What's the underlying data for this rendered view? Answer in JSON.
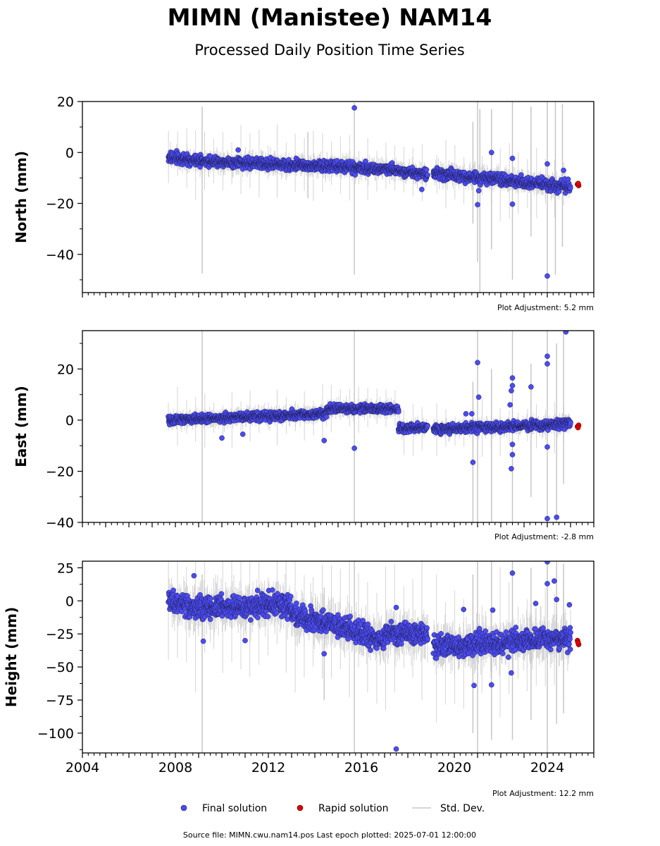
{
  "figure": {
    "title": "MIMN (Manistee) NAM14",
    "subtitle": "Processed Daily Position Time Series",
    "footer": "Source file: MIMN.cwu.nam14.pos  Last epoch plotted: 2025-07-01 12:00:00"
  },
  "legend": {
    "final_label": "Final solution",
    "rapid_label": "Rapid solution",
    "stddev_label": "Std. Dev."
  },
  "colors": {
    "final": "#4b4bf2",
    "final_edge": "#1a1a40",
    "rapid": "#e00000",
    "stddev": "#c8c8c8",
    "axis": "#000000"
  },
  "chart_data": [
    {
      "type": "scatter",
      "ylabel": "North (mm)",
      "xlim": [
        2004,
        2026
      ],
      "ylim": [
        -55,
        20
      ],
      "xticks": [
        2004,
        2008,
        2012,
        2016,
        2020,
        2024
      ],
      "show_xtick_labels": false,
      "yticks": [
        20,
        0,
        -20,
        -40
      ],
      "ytick_labels": [
        "20",
        "0",
        "−20",
        "−40"
      ],
      "adjustment_text": "Plot Adjustment: 5.2 mm",
      "segments": [
        {
          "x0": 2007.7,
          "x1": 2008.5,
          "y0": -2.0,
          "y1": -2.5,
          "noise": 1.5
        },
        {
          "x0": 2008.5,
          "x1": 2017.3,
          "y0": -3.0,
          "y1": -6.6,
          "noise": 1.6
        },
        {
          "x0": 2017.3,
          "x1": 2018.85,
          "y0": -6.8,
          "y1": -8.5,
          "noise": 1.5
        },
        {
          "x0": 2019.1,
          "x1": 2025.0,
          "y0": -8.0,
          "y1": -13.5,
          "noise": 1.7
        }
      ],
      "outliers": [
        {
          "x": 2015.7,
          "y": 17.5
        },
        {
          "x": 2024.0,
          "y": -48.5
        },
        {
          "x": 2021.6,
          "y": 0.0
        },
        {
          "x": 2022.5,
          "y": -2.3
        },
        {
          "x": 2024.0,
          "y": -4.5
        },
        {
          "x": 2021.0,
          "y": -20.5
        },
        {
          "x": 2022.5,
          "y": -20.3
        },
        {
          "x": 2021.05,
          "y": -15.0
        },
        {
          "x": 2018.6,
          "y": -14.5
        },
        {
          "x": 2024.7,
          "y": -7.0
        },
        {
          "x": 2010.7,
          "y": 1.0
        }
      ],
      "rapid": [
        {
          "x": 2025.3,
          "y": -12.5
        },
        {
          "x": 2025.35,
          "y": -13.0
        },
        {
          "x": 2025.33,
          "y": -12.2
        }
      ],
      "big_errors": [
        {
          "x": 2009.15,
          "lo": -47.5,
          "hi": 18.0
        },
        {
          "x": 2015.7,
          "lo": -48.0,
          "hi": 19.5
        },
        {
          "x": 2020.8,
          "lo": -28.0,
          "hi": 12.0
        },
        {
          "x": 2021.0,
          "lo": -43.0,
          "hi": 20.0
        },
        {
          "x": 2021.1,
          "lo": -55.0,
          "hi": 17.0
        },
        {
          "x": 2021.6,
          "lo": -38.0,
          "hi": 17.0
        },
        {
          "x": 2022.5,
          "lo": -50.0,
          "hi": 20.0
        },
        {
          "x": 2023.3,
          "lo": -33.0,
          "hi": 18.0
        },
        {
          "x": 2024.0,
          "lo": -55.0,
          "hi": 20.0
        },
        {
          "x": 2024.35,
          "lo": -48.0,
          "hi": 20.0
        },
        {
          "x": 2024.65,
          "lo": -37.0,
          "hi": 19.0
        },
        {
          "x": 2013.7,
          "lo": -18.0,
          "hi": 8.0
        }
      ]
    },
    {
      "type": "scatter",
      "ylabel": "East (mm)",
      "xlim": [
        2004,
        2026
      ],
      "ylim": [
        -40,
        35
      ],
      "xticks": [
        2004,
        2008,
        2012,
        2016,
        2020,
        2024
      ],
      "show_xtick_labels": false,
      "yticks": [
        20,
        0,
        -20,
        -40
      ],
      "ytick_labels": [
        "20",
        "0",
        "−20",
        "−40"
      ],
      "adjustment_text": "Plot Adjustment: -2.8 mm",
      "segments": [
        {
          "x0": 2007.7,
          "x1": 2014.5,
          "y0": 0.0,
          "y1": 2.5,
          "noise": 1.3
        },
        {
          "x0": 2014.5,
          "x1": 2017.6,
          "y0": 4.5,
          "y1": 4.5,
          "noise": 1.2
        },
        {
          "x0": 2017.6,
          "x1": 2018.85,
          "y0": -3.0,
          "y1": -3.0,
          "noise": 1.2
        },
        {
          "x0": 2019.1,
          "x1": 2025.0,
          "y0": -3.5,
          "y1": -1.5,
          "noise": 1.3
        }
      ],
      "outliers": [
        {
          "x": 2021.0,
          "y": 22.5
        },
        {
          "x": 2024.0,
          "y": 25.0
        },
        {
          "x": 2024.0,
          "y": 22.0
        },
        {
          "x": 2024.8,
          "y": 34.5
        },
        {
          "x": 2022.5,
          "y": 16.5
        },
        {
          "x": 2022.5,
          "y": 13.5
        },
        {
          "x": 2022.45,
          "y": 11.5
        },
        {
          "x": 2023.3,
          "y": 13.0
        },
        {
          "x": 2021.05,
          "y": 9.0
        },
        {
          "x": 2022.4,
          "y": 6.0
        },
        {
          "x": 2022.5,
          "y": -9.5
        },
        {
          "x": 2022.5,
          "y": -13.5
        },
        {
          "x": 2022.45,
          "y": -19.0
        },
        {
          "x": 2020.8,
          "y": -16.5
        },
        {
          "x": 2024.0,
          "y": -10.5
        },
        {
          "x": 2024.0,
          "y": -38.5
        },
        {
          "x": 2024.4,
          "y": -38.0
        },
        {
          "x": 2015.7,
          "y": -11.0
        },
        {
          "x": 2014.4,
          "y": -8.0
        },
        {
          "x": 2020.5,
          "y": 2.5
        },
        {
          "x": 2020.75,
          "y": 2.5
        },
        {
          "x": 2010.0,
          "y": -7.0
        },
        {
          "x": 2010.9,
          "y": -5.5
        }
      ],
      "rapid": [
        {
          "x": 2025.3,
          "y": -2.5
        },
        {
          "x": 2025.35,
          "y": -2.0
        },
        {
          "x": 2025.32,
          "y": -2.9
        }
      ],
      "big_errors": [
        {
          "x": 2009.15,
          "lo": -40.0,
          "hi": 35.0
        },
        {
          "x": 2015.7,
          "lo": -40.0,
          "hi": 35.0
        },
        {
          "x": 2020.8,
          "lo": -40.0,
          "hi": 15.0
        },
        {
          "x": 2021.0,
          "lo": -40.0,
          "hi": 35.0
        },
        {
          "x": 2021.6,
          "lo": -40.0,
          "hi": 20.0
        },
        {
          "x": 2022.5,
          "lo": -40.0,
          "hi": 35.0
        },
        {
          "x": 2023.3,
          "lo": -30.0,
          "hi": 22.0
        },
        {
          "x": 2024.0,
          "lo": -40.0,
          "hi": 35.0
        },
        {
          "x": 2024.4,
          "lo": -40.0,
          "hi": 30.0
        },
        {
          "x": 2024.7,
          "lo": -25.0,
          "hi": 35.0
        }
      ]
    },
    {
      "type": "scatter",
      "ylabel": "Height (mm)",
      "xlim": [
        2004,
        2026
      ],
      "ylim": [
        -115,
        30
      ],
      "xticks": [
        2004,
        2008,
        2012,
        2016,
        2020,
        2024
      ],
      "xtick_labels": [
        "2004",
        "2008",
        "2012",
        "2016",
        "2020",
        "2024"
      ],
      "show_xtick_labels": true,
      "yticks": [
        25,
        0,
        -25,
        -50,
        -75,
        -100
      ],
      "ytick_labels": [
        "25",
        "0",
        "−25",
        "−50",
        "−75",
        "−100"
      ],
      "adjustment_text": "Plot Adjustment: 12.2 mm",
      "segments": [
        {
          "x0": 2007.7,
          "x1": 2008.3,
          "y0": 0.0,
          "y1": -3.0,
          "noise": 6.0
        },
        {
          "x0": 2008.3,
          "x1": 2013.0,
          "y0": -5.0,
          "y1": -3.0,
          "noise": 6.5
        },
        {
          "x0": 2013.0,
          "x1": 2017.0,
          "y0": -10.0,
          "y1": -30.0,
          "noise": 6.5
        },
        {
          "x0": 2017.0,
          "x1": 2018.85,
          "y0": -25.0,
          "y1": -25.0,
          "noise": 6.5
        },
        {
          "x0": 2019.1,
          "x1": 2025.0,
          "y0": -35.0,
          "y1": -28.0,
          "noise": 6.5
        }
      ],
      "outliers": [
        {
          "x": 2017.5,
          "y": -112.0
        },
        {
          "x": 2024.0,
          "y": 29.5
        },
        {
          "x": 2022.5,
          "y": 21.0
        },
        {
          "x": 2024.3,
          "y": 15.0
        },
        {
          "x": 2024.0,
          "y": 13.0
        },
        {
          "x": 2008.8,
          "y": 19.0
        },
        {
          "x": 2024.4,
          "y": 1.0
        },
        {
          "x": 2023.5,
          "y": -2.0
        },
        {
          "x": 2024.95,
          "y": -3.0
        },
        {
          "x": 2020.85,
          "y": -64.0
        },
        {
          "x": 2021.6,
          "y": -63.5
        },
        {
          "x": 2022.45,
          "y": -54.5
        },
        {
          "x": 2014.4,
          "y": -40.0
        },
        {
          "x": 2009.2,
          "y": -30.5
        },
        {
          "x": 2011.0,
          "y": -30.0
        },
        {
          "x": 2020.4,
          "y": -6.5
        },
        {
          "x": 2021.65,
          "y": -7.0
        },
        {
          "x": 2017.5,
          "y": -5.0
        }
      ],
      "rapid": [
        {
          "x": 2025.3,
          "y": -30.0
        },
        {
          "x": 2025.35,
          "y": -33.0
        },
        {
          "x": 2025.32,
          "y": -31.5
        }
      ],
      "big_errors": [
        {
          "x": 2009.15,
          "lo": -115.0,
          "hi": 20.0
        },
        {
          "x": 2015.7,
          "lo": -115.0,
          "hi": 30.0
        },
        {
          "x": 2020.8,
          "lo": -100.0,
          "hi": 20.0
        },
        {
          "x": 2021.0,
          "lo": -115.0,
          "hi": 30.0
        },
        {
          "x": 2021.6,
          "lo": -105.0,
          "hi": 30.0
        },
        {
          "x": 2022.5,
          "lo": -105.0,
          "hi": 30.0
        },
        {
          "x": 2023.3,
          "lo": -90.0,
          "hi": 25.0
        },
        {
          "x": 2024.0,
          "lo": -115.0,
          "hi": 30.0
        },
        {
          "x": 2024.4,
          "lo": -93.0,
          "hi": 30.0
        },
        {
          "x": 2024.7,
          "lo": -85.0,
          "hi": 28.0
        },
        {
          "x": 2014.4,
          "lo": -75.0,
          "hi": 10.0
        }
      ]
    }
  ]
}
